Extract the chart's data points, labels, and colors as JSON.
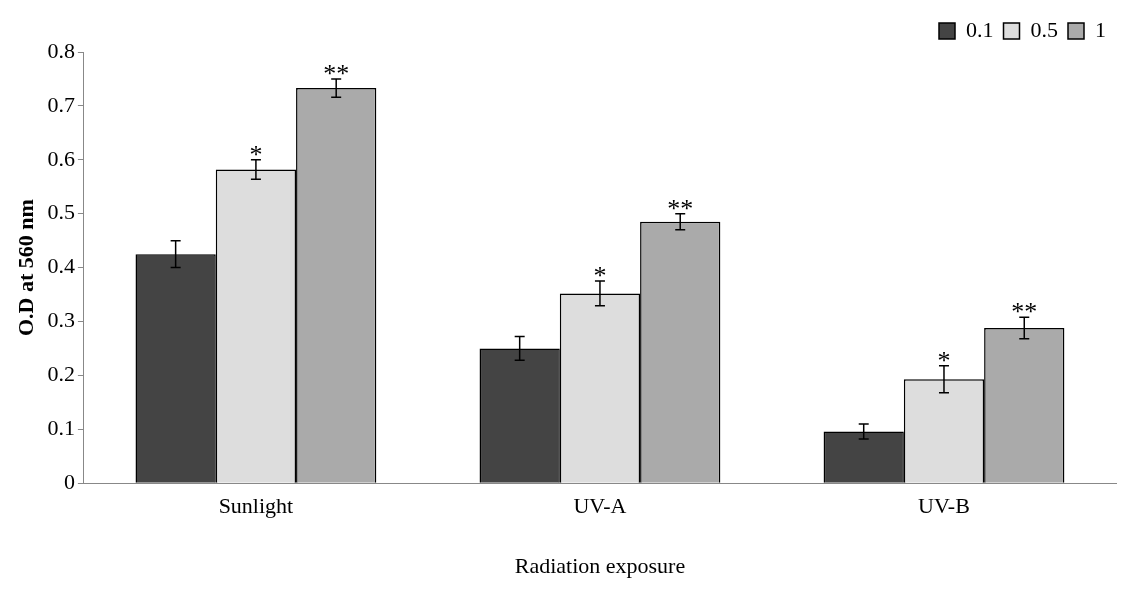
{
  "chart_data": {
    "type": "bar",
    "xlabel": "Radiation exposure",
    "ylabel": "O.D at 560 nm",
    "categories": [
      "Sunlight",
      "UV-A",
      "UV-B"
    ],
    "series": [
      {
        "name": "0.1",
        "color": "#444444",
        "values": [
          0.425,
          0.25,
          0.096
        ],
        "errors": [
          0.025,
          0.022,
          0.014
        ]
      },
      {
        "name": "0.5",
        "color": "#dddddd",
        "values": [
          0.582,
          0.352,
          0.193
        ],
        "errors": [
          0.018,
          0.023,
          0.025
        ]
      },
      {
        "name": "1",
        "color": "#aaaaaa",
        "values": [
          0.733,
          0.485,
          0.288
        ],
        "errors": [
          0.017,
          0.015,
          0.02
        ]
      }
    ],
    "ylim": [
      0,
      0.8
    ],
    "yticks": [
      0,
      0.1,
      0.2,
      0.3,
      0.4,
      0.5,
      0.6,
      0.7,
      0.8
    ],
    "grid": false,
    "legend": "top right",
    "annotations": [
      "*",
      "**",
      "*",
      "**",
      "*",
      "**"
    ]
  }
}
